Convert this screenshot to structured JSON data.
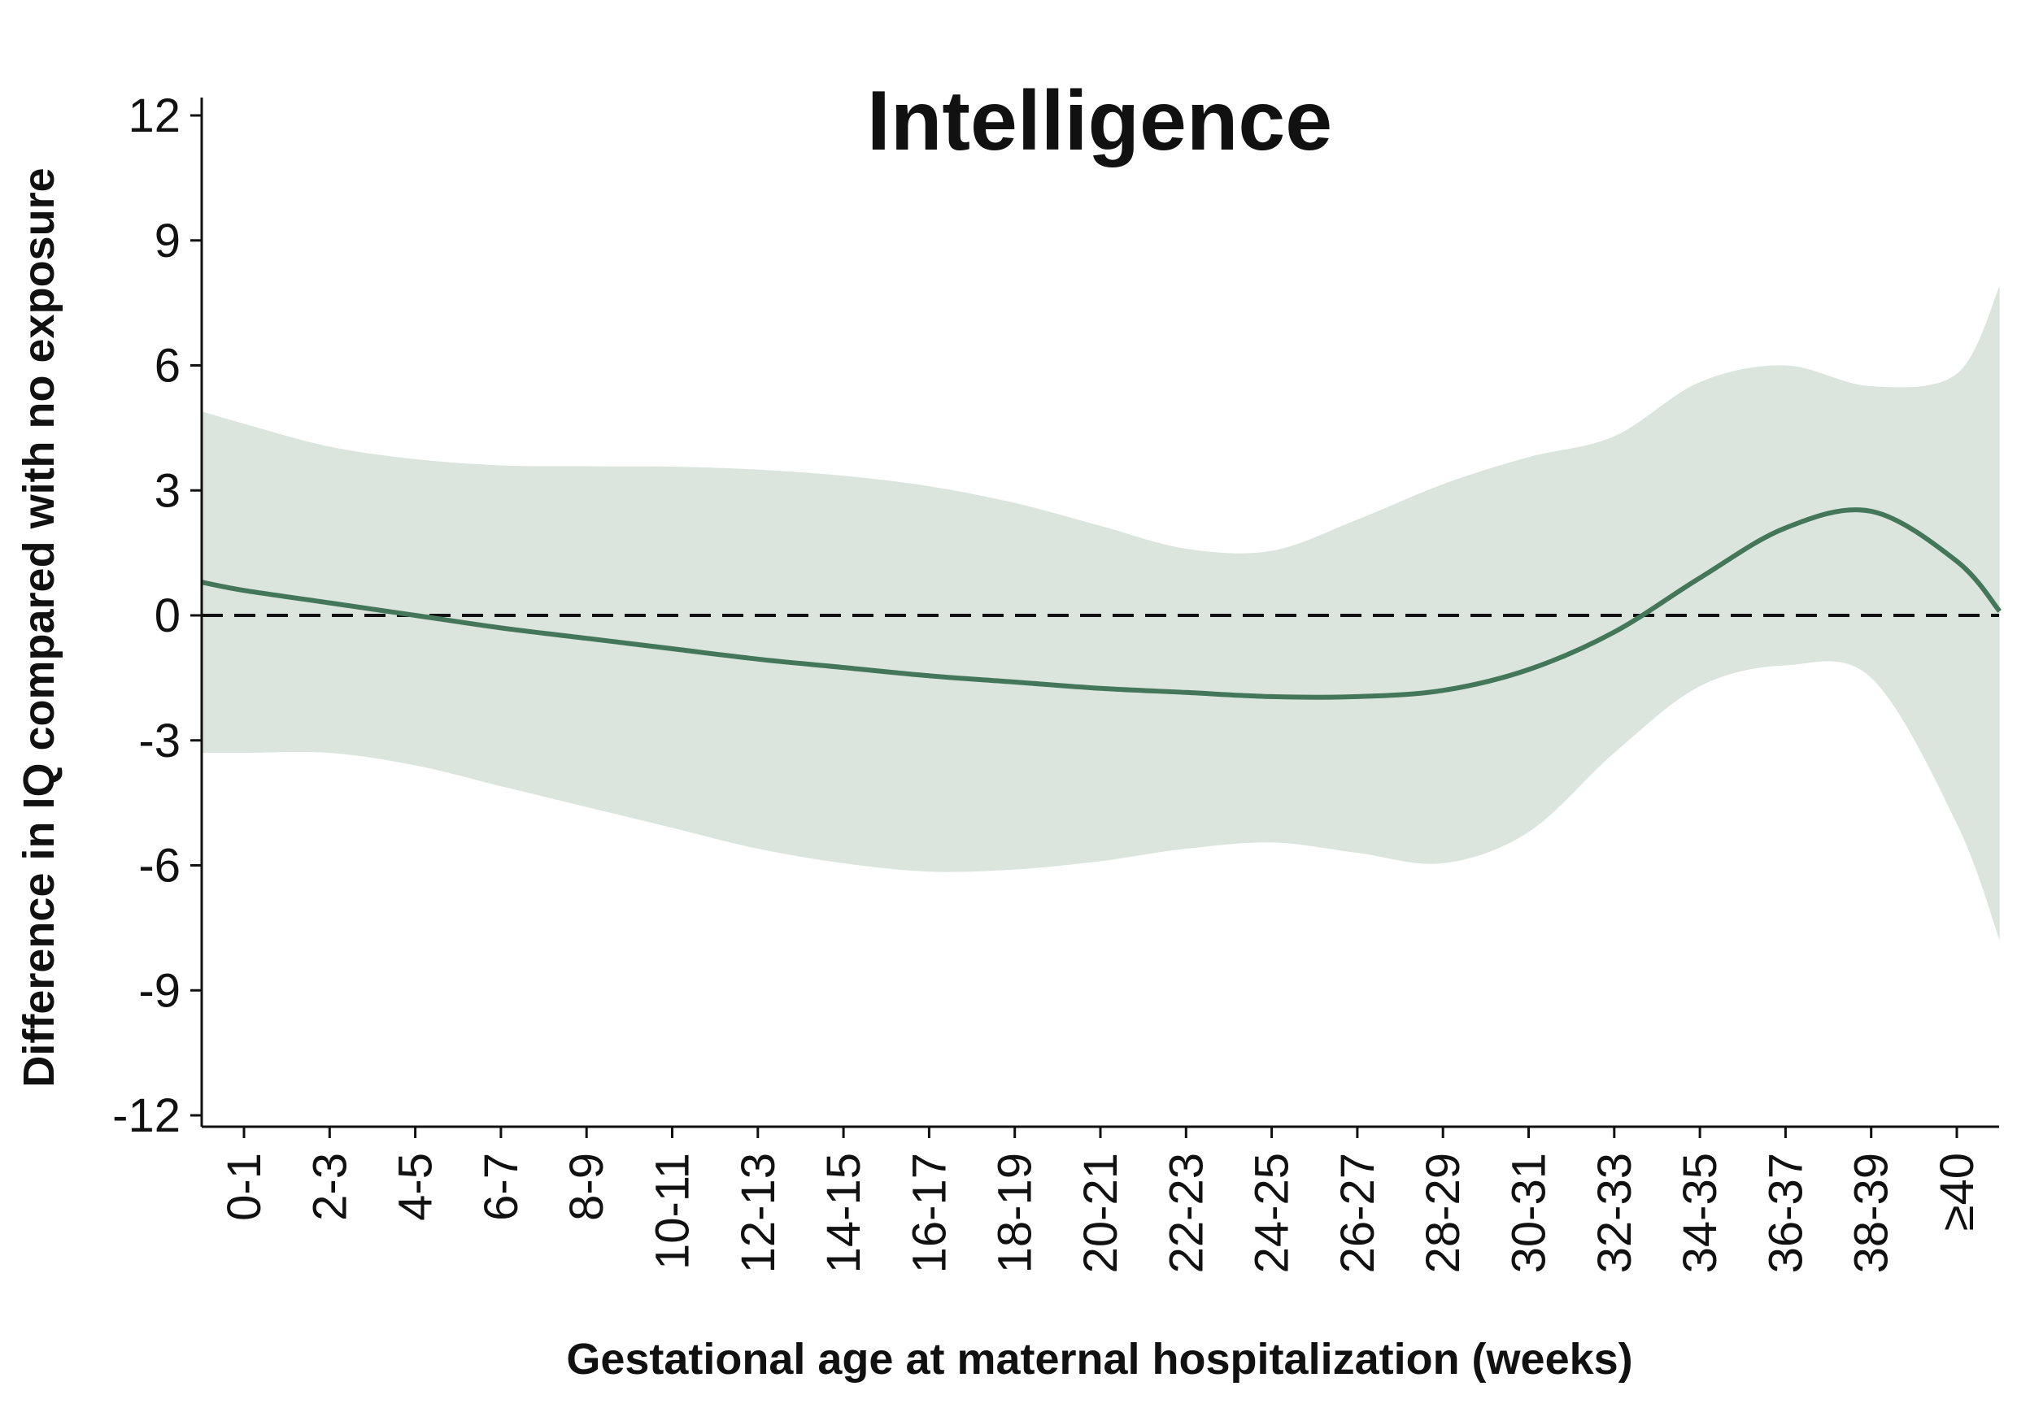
{
  "chart_data": {
    "type": "line",
    "title": "Intelligence",
    "xlabel": "Gestational age at maternal hospitalization (weeks)",
    "ylabel": "Difference in IQ compared with no exposure",
    "categories": [
      "0-1",
      "2-3",
      "4-5",
      "6-7",
      "8-9",
      "10-11",
      "12-13",
      "14-15",
      "16-17",
      "18-19",
      "20-21",
      "22-23",
      "24-25",
      "26-27",
      "28-29",
      "30-31",
      "32-33",
      "34-35",
      "36-37",
      "38-39",
      "≥40"
    ],
    "y_ticks": [
      "12",
      "9",
      "6",
      "3",
      "0",
      "-3",
      "-6",
      "-9",
      "-12"
    ],
    "ylim": [
      -12,
      12
    ],
    "x_range": [
      -0.5,
      20.5
    ],
    "reference_line": {
      "y": 0,
      "style": "dashed"
    },
    "grid": false,
    "colors": {
      "line": "#44775a",
      "band": "#dbe5de",
      "reference": "#111111"
    },
    "series": [
      {
        "x": [
          -0.5,
          0,
          1,
          2,
          3,
          4,
          5,
          6,
          7,
          8,
          9,
          10,
          11,
          12,
          13,
          14,
          15,
          16,
          17,
          18,
          19,
          20,
          20.5
        ],
        "values": [
          0.8,
          0.6,
          0.3,
          0.0,
          -0.3,
          -0.55,
          -0.8,
          -1.05,
          -1.25,
          -1.45,
          -1.6,
          -1.75,
          -1.85,
          -1.95,
          -1.95,
          -1.8,
          -1.3,
          -0.4,
          0.9,
          2.1,
          2.5,
          1.3,
          0.1
        ],
        "lower": [
          -3.3,
          -3.3,
          -3.3,
          -3.6,
          -4.1,
          -4.6,
          -5.1,
          -5.6,
          -5.95,
          -6.15,
          -6.1,
          -5.9,
          -5.6,
          -5.45,
          -5.7,
          -5.95,
          -5.2,
          -3.3,
          -1.7,
          -1.2,
          -1.5,
          -5.0,
          -7.8
        ],
        "upper": [
          4.9,
          4.6,
          4.05,
          3.75,
          3.6,
          3.58,
          3.57,
          3.5,
          3.35,
          3.1,
          2.7,
          2.15,
          1.6,
          1.55,
          2.3,
          3.15,
          3.8,
          4.3,
          5.6,
          6.0,
          5.5,
          5.8,
          7.9
        ]
      }
    ]
  }
}
